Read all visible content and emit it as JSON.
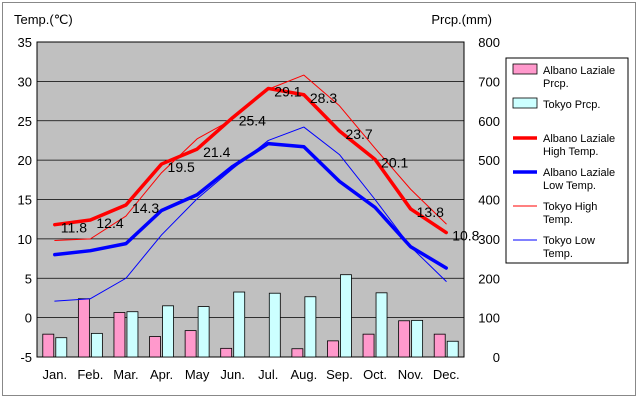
{
  "chart_data": {
    "type": "bar+line",
    "categories": [
      "Jan.",
      "Feb.",
      "Mar.",
      "Apr.",
      "May",
      "Jun.",
      "Jul.",
      "Aug.",
      "Sep.",
      "Oct.",
      "Nov.",
      "Dec."
    ],
    "y_left": {
      "label": "Temp.(℃)",
      "lim": [
        -5,
        35
      ],
      "ticks": [
        "-5",
        "0",
        "5",
        "10",
        "15",
        "20",
        "25",
        "30",
        "35"
      ]
    },
    "y_right": {
      "label": "Prcp.(mm)",
      "lim": [
        0,
        800
      ],
      "ticks": [
        "0",
        "100",
        "200",
        "300",
        "400",
        "500",
        "600",
        "700",
        "800"
      ]
    },
    "bars": [
      {
        "name": "Albano Laziale Prcp.",
        "color": "#ff99cc",
        "values": [
          58,
          148,
          113,
          52,
          67,
          22,
          0,
          21,
          41,
          58,
          92,
          58
        ]
      },
      {
        "name": "Tokyo Prcp.",
        "color": "#ccffff",
        "values": [
          49,
          60,
          115,
          130,
          128,
          165,
          162,
          153,
          209,
          163,
          93,
          40
        ]
      }
    ],
    "lines": [
      {
        "name": "Albano Laziale High Temp.",
        "color": "#ff0000",
        "width": 3.5,
        "values": [
          11.8,
          12.4,
          14.3,
          19.5,
          21.4,
          25.4,
          29.1,
          28.3,
          23.7,
          20.1,
          13.8,
          10.8
        ],
        "labels": [
          "11.8",
          "12.4",
          "14.3",
          "19.5",
          "21.4",
          "25.4",
          "29.1",
          "28.3",
          "23.7",
          "20.1",
          "13.8",
          "10.8"
        ]
      },
      {
        "name": "Albano Laziale Low Temp.",
        "color": "#0000ff",
        "width": 3.5,
        "values": [
          8.0,
          8.5,
          9.4,
          13.6,
          15.6,
          19.2,
          22.1,
          21.7,
          17.3,
          14.0,
          9.0,
          6.3
        ]
      },
      {
        "name": "Tokyo High Temp.",
        "color": "#ff0000",
        "width": 1,
        "values": [
          9.8,
          10.0,
          12.9,
          18.4,
          22.7,
          25.2,
          29.0,
          30.8,
          26.9,
          21.5,
          16.3,
          11.9
        ]
      },
      {
        "name": "Tokyo Low Temp.",
        "color": "#0000ff",
        "width": 1,
        "values": [
          2.1,
          2.4,
          5.0,
          10.5,
          15.1,
          18.9,
          22.5,
          24.2,
          20.7,
          15.0,
          9.0,
          4.6
        ]
      }
    ],
    "legend": {
      "placement": "right",
      "entries": [
        {
          "lines": [
            "Albano Laziale",
            "Prcp."
          ],
          "kind": "bar",
          "color": "#ff99cc"
        },
        {
          "lines": [
            "Tokyo Prcp."
          ],
          "kind": "bar",
          "color": "#ccffff"
        },
        {
          "lines": [
            "Albano Laziale",
            "High Temp."
          ],
          "kind": "line",
          "color": "#ff0000",
          "thick": true
        },
        {
          "lines": [
            "Albano Laziale",
            "Low Temp."
          ],
          "kind": "line",
          "color": "#0000ff",
          "thick": true
        },
        {
          "lines": [
            "Tokyo High",
            "Temp."
          ],
          "kind": "line",
          "color": "#ff0000",
          "thick": false
        },
        {
          "lines": [
            "Tokyo Low",
            "Temp."
          ],
          "kind": "line",
          "color": "#0000ff",
          "thick": false
        }
      ]
    },
    "plot_background": "#c0c0c0",
    "grid": true
  }
}
